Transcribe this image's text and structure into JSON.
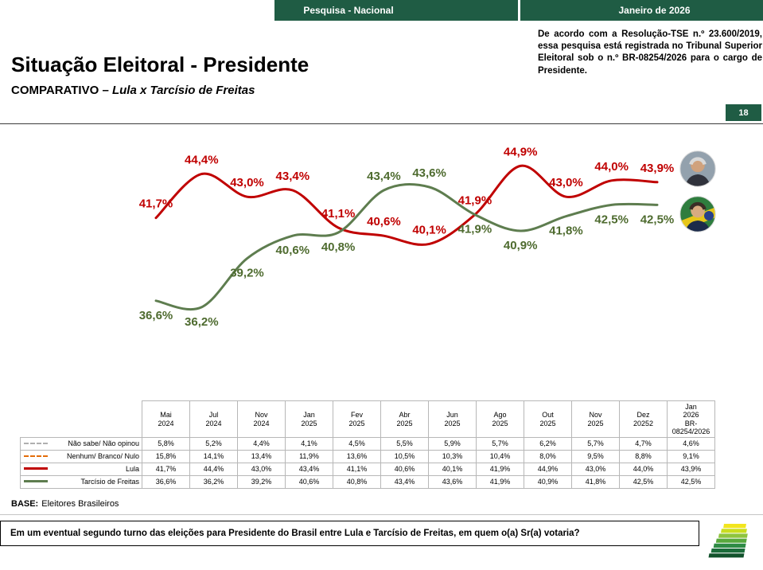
{
  "topbar": {
    "left_label": "Pesquisa - Nacional",
    "right_label": "Janeiro de 2026"
  },
  "header": {
    "tse_note": "De acordo com a Resolução-TSE n.º 23.600/2019, essa pesquisa está registrada no Tribunal Superior Eleitoral sob o n.º BR-08254/2026 para o cargo de Presidente.",
    "title": "Situação Eleitoral - Presidente",
    "subtitle_prefix": "COMPARATIVO – ",
    "subtitle_emphasis": "Lula x Tarcísio de Freitas",
    "page_number": "18"
  },
  "chart_data": {
    "type": "line",
    "title": "Situação Eleitoral - Presidente: Lula x Tarcísio de Freitas",
    "categories": [
      "Mai 2024",
      "Jul 2024",
      "Nov 2024",
      "Jan 2025",
      "Fev 2025",
      "Abr 2025",
      "Jun 2025",
      "Ago 2025",
      "Out 2025",
      "Nov 2025",
      "Dez 20252",
      "Jan 2026 BR-08254/2026"
    ],
    "ylim": [
      34,
      47
    ],
    "grid": false,
    "legend_position": "table-left",
    "series": [
      {
        "name": "Lula",
        "color": "#c00000",
        "label_color": "#c00000",
        "values": [
          41.7,
          44.4,
          43.0,
          43.4,
          41.1,
          40.6,
          40.1,
          41.9,
          44.9,
          43.0,
          44.0,
          43.9
        ],
        "labels": [
          "41,7%",
          "44,4%",
          "43,0%",
          "43,4%",
          "41,1%",
          "40,6%",
          "40,1%",
          "41,9%",
          "44,9%",
          "43,0%",
          "44,0%",
          "43,9%"
        ]
      },
      {
        "name": "Tarcísio de Freitas",
        "color": "#5e7d4f",
        "label_color": "#4e6b2f",
        "values": [
          36.6,
          36.2,
          39.2,
          40.6,
          40.8,
          43.4,
          43.6,
          41.9,
          40.9,
          41.8,
          42.5,
          42.5
        ],
        "labels": [
          "36,6%",
          "36,2%",
          "39,2%",
          "40,6%",
          "40,8%",
          "43,4%",
          "43,6%",
          "41,9%",
          "40,9%",
          "41,8%",
          "42,5%",
          "42,5%"
        ]
      }
    ]
  },
  "table": {
    "col_headers": [
      "Mai\n2024",
      "Jul\n2024",
      "Nov\n2024",
      "Jan\n2025",
      "Fev\n2025",
      "Abr\n2025",
      "Jun\n2025",
      "Ago\n2025",
      "Out\n2025",
      "Nov\n2025",
      "Dez\n20252",
      "Jan\n2026\nBR-\n08254/2026"
    ],
    "rows": [
      {
        "label": "Não sabe/ Não opinou",
        "glyph": "dash-gray",
        "values": [
          "5,8%",
          "5,2%",
          "4,4%",
          "4,1%",
          "4,5%",
          "5,5%",
          "5,9%",
          "5,7%",
          "6,2%",
          "5,7%",
          "4,7%",
          "4,6%"
        ]
      },
      {
        "label": "Nenhum/ Branco/ Nulo",
        "glyph": "dash-orange",
        "values": [
          "15,8%",
          "14,1%",
          "13,4%",
          "11,9%",
          "13,6%",
          "10,5%",
          "10,3%",
          "10,4%",
          "8,0%",
          "9,5%",
          "8,8%",
          "9,1%"
        ]
      },
      {
        "label": "Lula",
        "glyph": "solid-red",
        "values": [
          "41,7%",
          "44,4%",
          "43,0%",
          "43,4%",
          "41,1%",
          "40,6%",
          "40,1%",
          "41,9%",
          "44,9%",
          "43,0%",
          "44,0%",
          "43,9%"
        ]
      },
      {
        "label": "Tarcísio de Freitas",
        "glyph": "solid-green",
        "values": [
          "36,6%",
          "36,2%",
          "39,2%",
          "40,6%",
          "40,8%",
          "43,4%",
          "43,6%",
          "41,9%",
          "40,9%",
          "41,8%",
          "42,5%",
          "42,5%"
        ]
      }
    ]
  },
  "footer": {
    "base_label": "BASE:",
    "base_value": "Eleitores Brasileiros",
    "question": "Em um eventual segundo turno das eleições para Presidente do Brasil entre Lula e Tarcísio de Freitas, em quem o(a) Sr(a) votaria?"
  },
  "colors": {
    "brand_green": "#1f5c44",
    "lula_red": "#c00000",
    "tarcisio_green": "#5e7d4f",
    "none_orange": "#e36c09",
    "dontknow_gray": "#b0b0b0"
  }
}
